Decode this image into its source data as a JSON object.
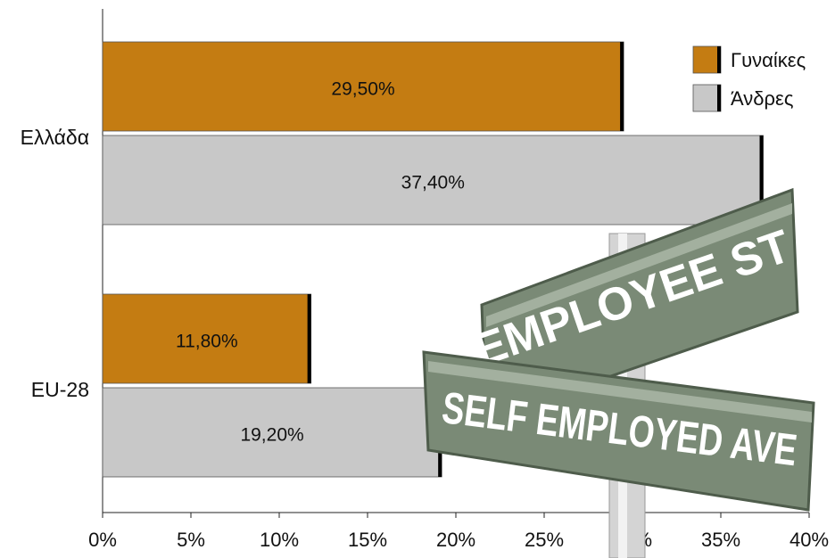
{
  "chart_data": {
    "type": "hbar",
    "categories": [
      "Ελλάδα",
      "EU-28"
    ],
    "series": [
      {
        "name": "Γυναίκες",
        "color": "#c47c12",
        "values": [
          29.5,
          11.8
        ],
        "value_labels": [
          "29,50%",
          "11,80%"
        ]
      },
      {
        "name": "Άνδρες",
        "color": "#c8c8c8",
        "values": [
          37.4,
          19.2
        ],
        "value_labels": [
          "37,40%",
          "19,20%"
        ]
      }
    ],
    "xlim": [
      0,
      40
    ],
    "xticks": [
      {
        "value": 0,
        "label": "0%"
      },
      {
        "value": 5,
        "label": "5%"
      },
      {
        "value": 10,
        "label": "10%"
      },
      {
        "value": 15,
        "label": "15%"
      },
      {
        "value": 20,
        "label": "20%"
      },
      {
        "value": 25,
        "label": "25%"
      },
      {
        "value": 30,
        "label": "30%"
      },
      {
        "value": 35,
        "label": "35%"
      },
      {
        "value": 40,
        "label": "40%"
      }
    ],
    "legend": "upper right",
    "annotations": [
      "EMPLOYEE ST",
      "SELF EMPLOYED AVE"
    ]
  }
}
